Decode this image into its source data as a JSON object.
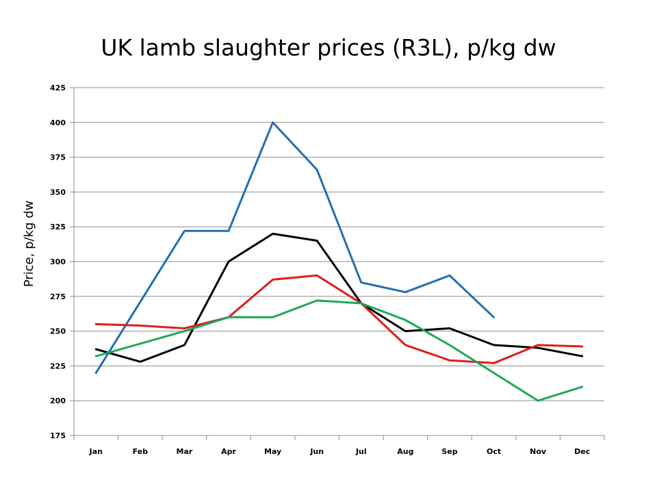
{
  "chart_data": {
    "type": "line",
    "title": "UK lamb slaughter prices (R3L),  p/kg dw",
    "xlabel": "",
    "ylabel": "Price, p/kg dw",
    "categories": [
      "Jan",
      "Feb",
      "Mar",
      "Apr",
      "May",
      "Jun",
      "Jul",
      "Aug",
      "Sep",
      "Oct",
      "Nov",
      "Dec"
    ],
    "ylim": [
      175,
      425
    ],
    "yticks": [
      175,
      200,
      225,
      250,
      275,
      300,
      325,
      350,
      375,
      400,
      425
    ],
    "grid": true,
    "legend": "none",
    "series": [
      {
        "color": "#1f6fb4",
        "values": [
          220,
          271,
          322,
          322,
          400,
          366,
          285,
          278,
          290,
          260,
          null,
          null
        ]
      },
      {
        "color": "#000000",
        "values": [
          237,
          228,
          240,
          300,
          320,
          315,
          270,
          250,
          252,
          240,
          238,
          232
        ]
      },
      {
        "color": "#e31a1c",
        "values": [
          255,
          254,
          252,
          260,
          287,
          290,
          270,
          240,
          229,
          227,
          240,
          239
        ]
      },
      {
        "color": "#1aaa55",
        "values": [
          232,
          241,
          250,
          260,
          260,
          272,
          270,
          258,
          240,
          220,
          200,
          210
        ]
      }
    ]
  }
}
